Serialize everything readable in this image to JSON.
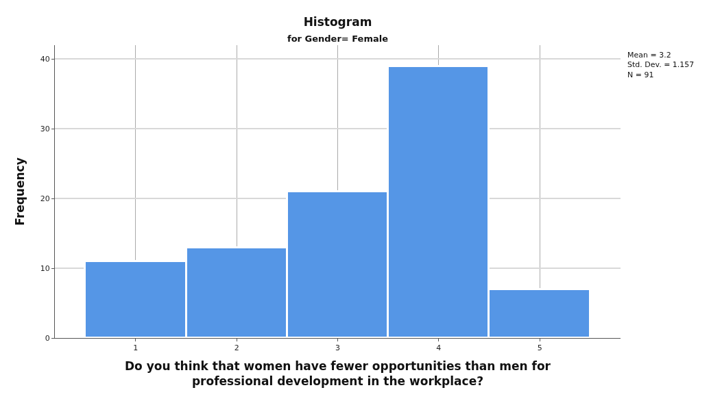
{
  "chart_data": {
    "type": "histogram",
    "title": "Histogram",
    "subtitle": "for Gender= Female",
    "xlabel": "Do you think that women have fewer opportunities than men for professional development in the workplace?",
    "ylabel": "Frequency",
    "bins": [
      0.5,
      1.5,
      2.5,
      3.5,
      4.5,
      5.5
    ],
    "values": [
      11,
      13,
      21,
      39,
      7
    ],
    "color": "#5596e6",
    "xlim": [
      0.2,
      5.8
    ],
    "xticks": [
      1,
      2,
      3,
      4,
      5
    ],
    "ylim": [
      0,
      42
    ],
    "yticks": [
      0,
      10,
      20,
      30,
      40
    ],
    "grid": true,
    "annotations": [
      "Mean = 3.2",
      "Std. Dev. = 1.157",
      "N = 91"
    ]
  }
}
